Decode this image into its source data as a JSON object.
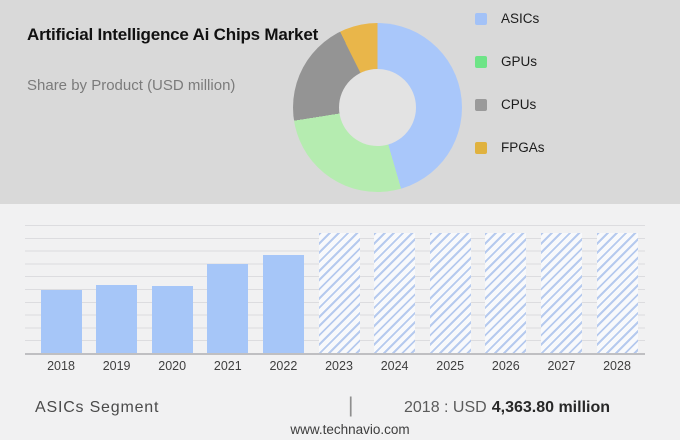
{
  "header": {
    "title": "Artificial Intelligence Ai Chips Market",
    "subtitle": "Share by Product (USD million)"
  },
  "legend": {
    "items": [
      {
        "label": "ASICs",
        "color": "#a3c2f7"
      },
      {
        "label": "GPUs",
        "color": "#6ee487"
      },
      {
        "label": "CPUs",
        "color": "#9a9a9a"
      },
      {
        "label": "FPGAs",
        "color": "#e0b23f"
      }
    ]
  },
  "chart_data": [
    {
      "type": "pie",
      "subtype": "donut",
      "title": "Share by Product (USD million)",
      "unit": "USD million",
      "legend_position": "right",
      "segments": [
        {
          "label": "ASICs",
          "percent": 45.5,
          "color": "#a9c7fa"
        },
        {
          "label": "GPUs",
          "percent": 27.0,
          "color": "#b5ecb0"
        },
        {
          "label": "CPUs",
          "percent": 20.2,
          "color": "#949494"
        },
        {
          "label": "FPGAs",
          "percent": 7.3,
          "color": "#e9b64a"
        }
      ]
    },
    {
      "type": "bar",
      "categories": [
        "2018",
        "2019",
        "2020",
        "2021",
        "2022",
        "2023",
        "2024",
        "2025",
        "2026",
        "2027",
        "2028"
      ],
      "values": [
        4363.8,
        4710,
        4640,
        6165,
        6790,
        8310,
        8310,
        8310,
        8310,
        8310,
        8310
      ],
      "forecast_hatched_categories": [
        "2023",
        "2024",
        "2025",
        "2026",
        "2027",
        "2028"
      ],
      "labeled_value": {
        "year": "2018",
        "text": "2018 : USD 4,363.80 million"
      },
      "bar_color": "#a6c6f8",
      "hatch_color": "#8aaae6",
      "grid": true,
      "xlabel": "",
      "ylabel": "",
      "y_axis_labels_shown": false
    }
  ],
  "footer": {
    "segment_label": "ASICs Segment",
    "separator": "|",
    "value_prefix": "2018 : USD",
    "value_bold": "4,363.80 million",
    "watermark": "www.technavio.com"
  },
  "colors": {
    "header_band_bg": "#d9d9d9",
    "chart_section_bg": "#f1f1f2",
    "donut_hole": "#e3e3e3"
  }
}
